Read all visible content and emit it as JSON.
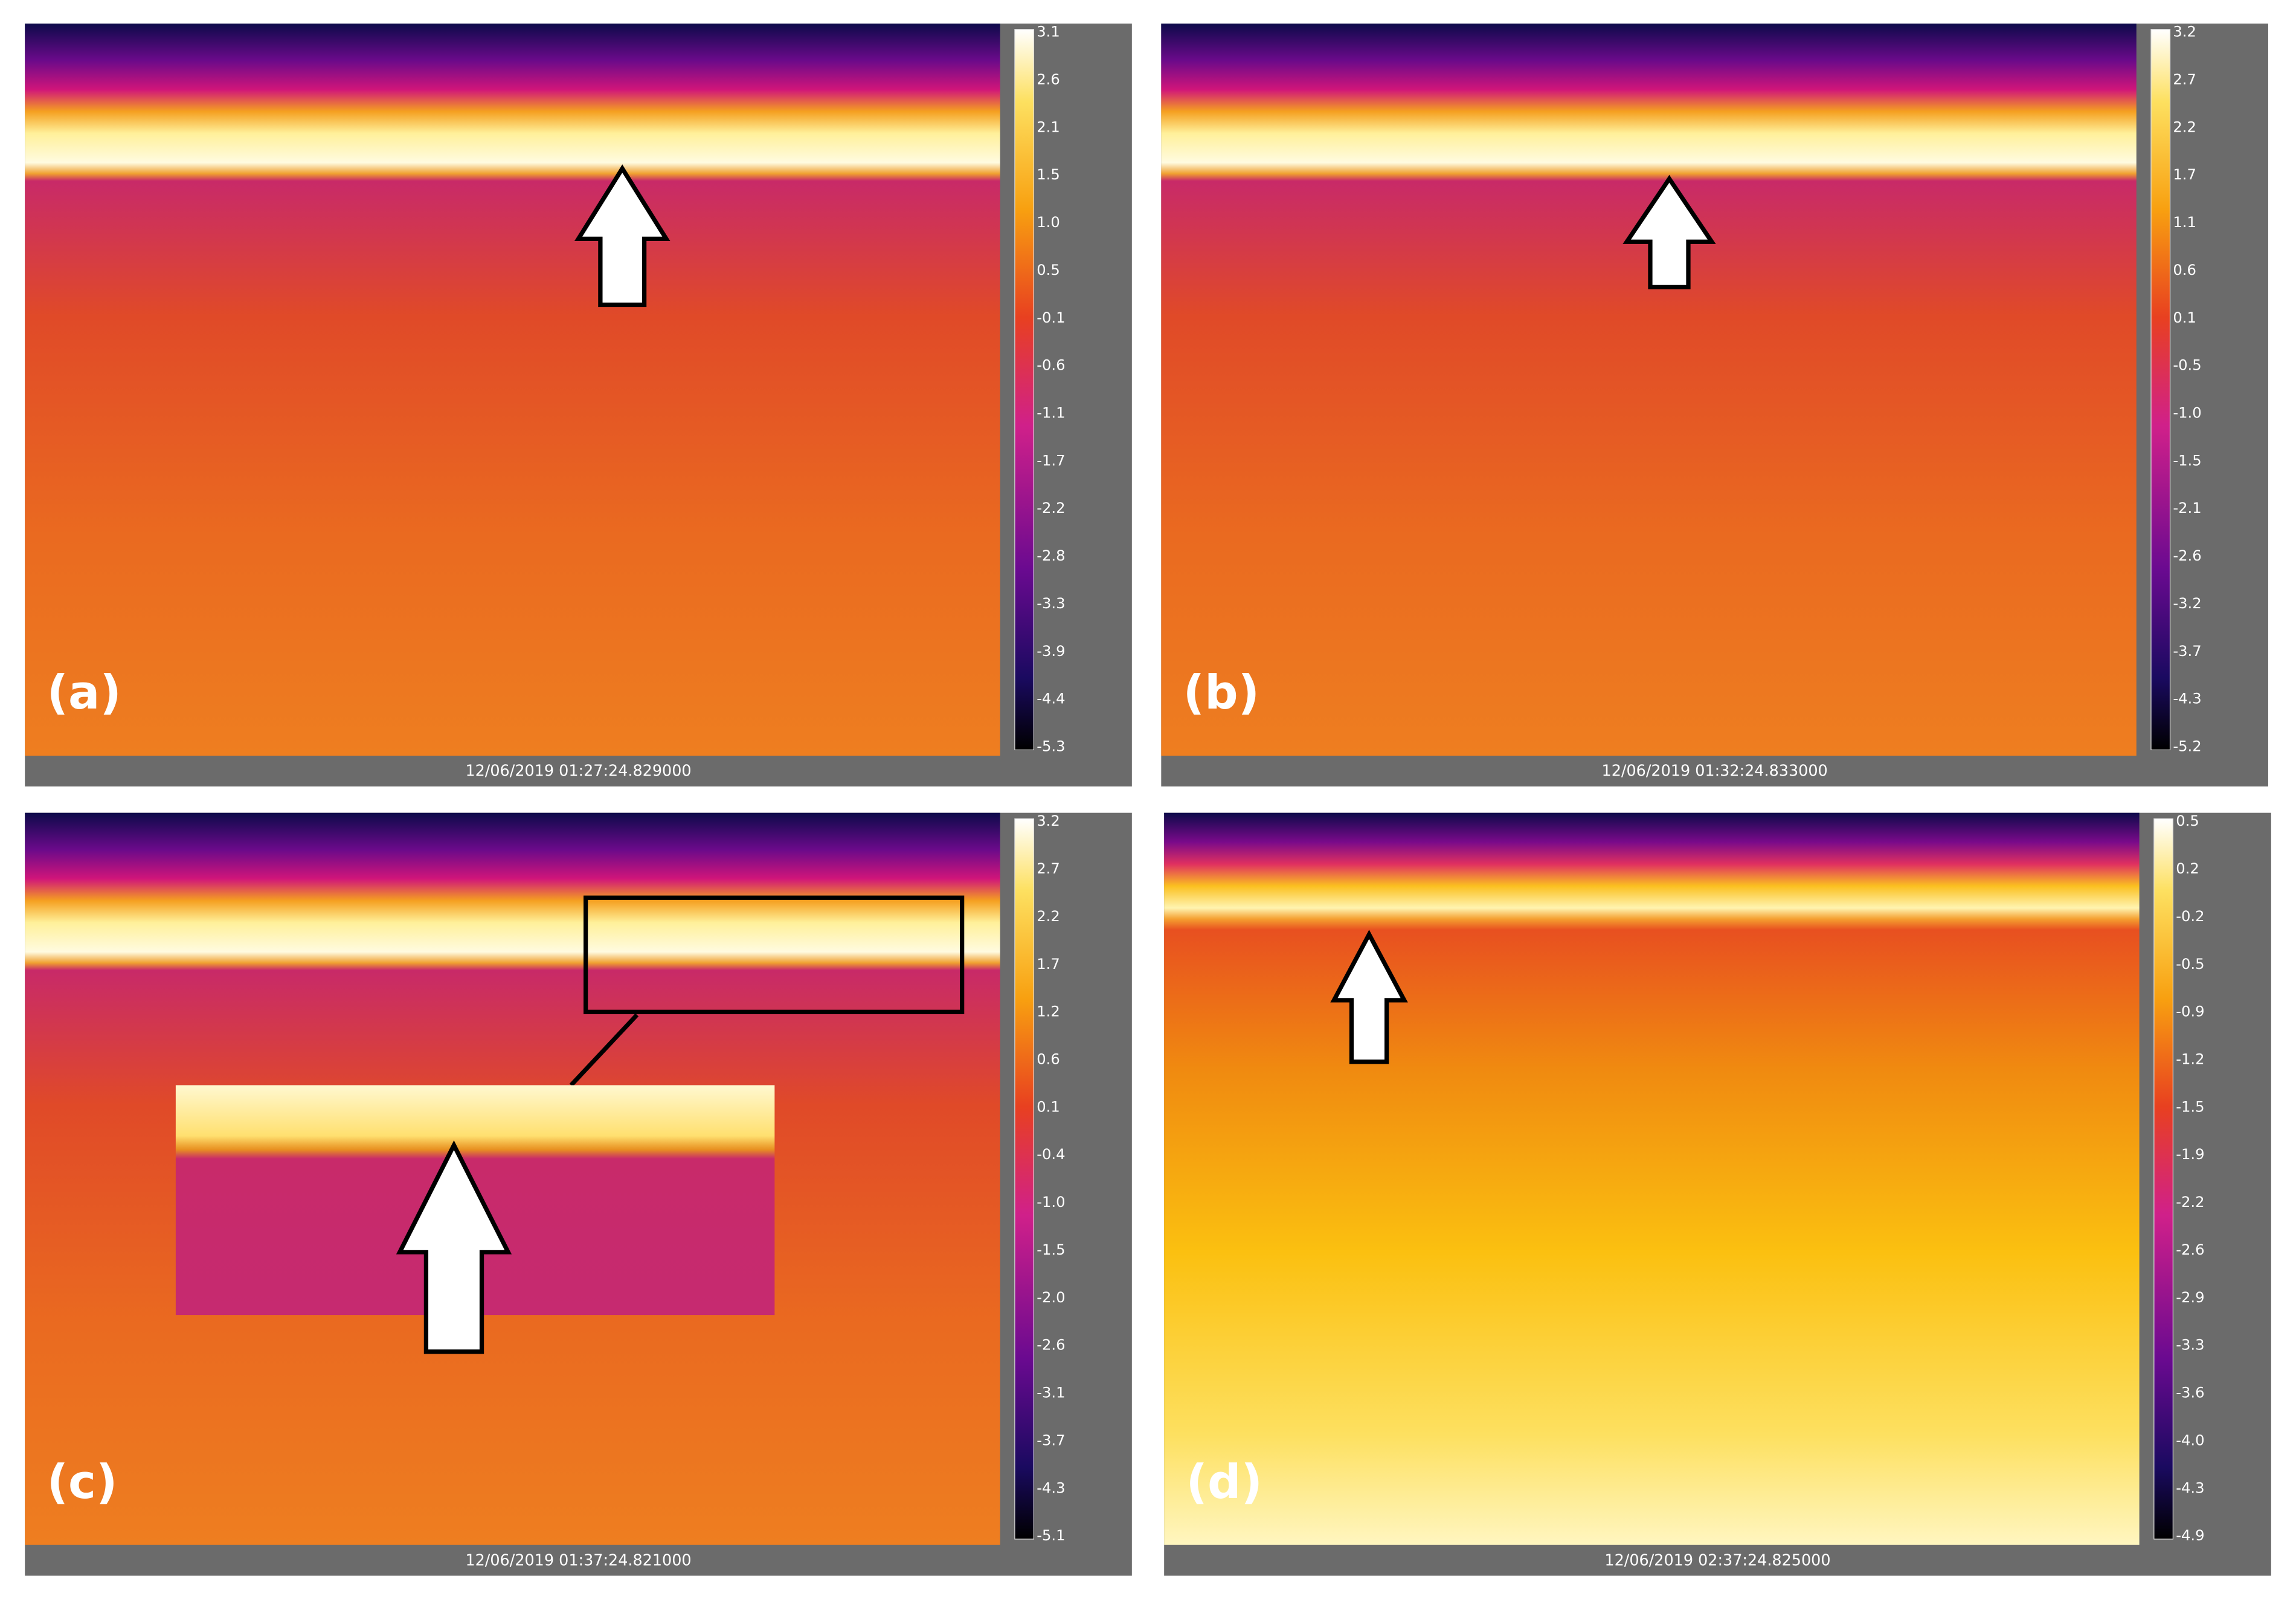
{
  "panels": [
    {
      "label": "(a)",
      "timestamp": "12/06/2019 01:27:24.829000",
      "scale": [
        "3.1",
        "2.6",
        "2.1",
        "1.5",
        "1.0",
        "0.5",
        "-0.1",
        "-0.6",
        "-1.1",
        "-1.7",
        "-2.2",
        "-2.8",
        "-3.3",
        "-3.9",
        "-4.4",
        "-5.3"
      ]
    },
    {
      "label": "(b)",
      "timestamp": "12/06/2019 01:32:24.833000",
      "scale": [
        "3.2",
        "2.7",
        "2.2",
        "1.7",
        "1.1",
        "0.6",
        "0.1",
        "-0.5",
        "-1.0",
        "-1.5",
        "-2.1",
        "-2.6",
        "-3.2",
        "-3.7",
        "-4.3",
        "-5.2"
      ]
    },
    {
      "label": "(c)",
      "timestamp": "12/06/2019 01:37:24.821000",
      "scale": [
        "3.2",
        "2.7",
        "2.2",
        "1.7",
        "1.2",
        "0.6",
        "0.1",
        "-0.4",
        "-1.0",
        "-1.5",
        "-2.0",
        "-2.6",
        "-3.1",
        "-3.7",
        "-4.3",
        "-5.1"
      ]
    },
    {
      "label": "(d)",
      "timestamp": "12/06/2019 02:37:24.825000",
      "scale": [
        "0.5",
        "0.2",
        "-0.2",
        "-0.5",
        "-0.9",
        "-1.2",
        "-1.5",
        "-1.9",
        "-2.2",
        "-2.6",
        "-2.9",
        "-3.3",
        "-3.6",
        "-4.0",
        "-4.3",
        "-4.9"
      ]
    }
  ]
}
